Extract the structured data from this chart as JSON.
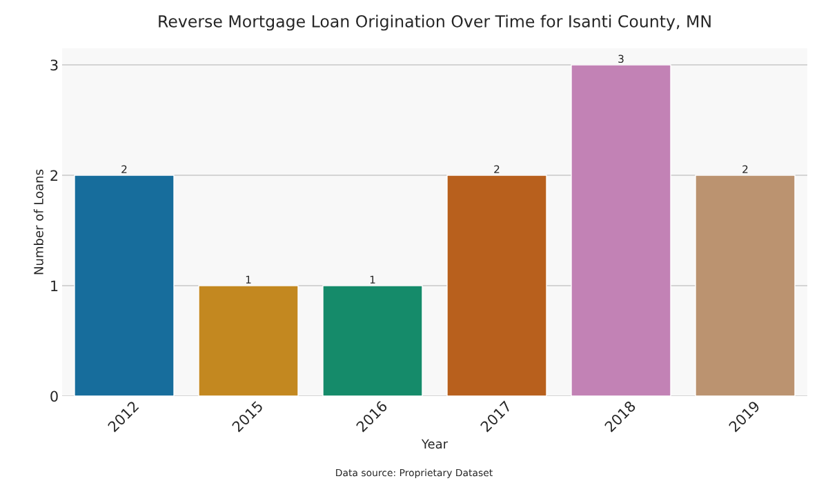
{
  "chart_data": {
    "type": "bar",
    "title": "Reverse Mortgage Loan Origination Over Time for Isanti County, MN",
    "xlabel": "Year",
    "ylabel": "Number of Loans",
    "categories": [
      "2012",
      "2015",
      "2016",
      "2017",
      "2018",
      "2019"
    ],
    "values": [
      2,
      1,
      1,
      2,
      3,
      2
    ],
    "colors": [
      "#176d9c",
      "#c38820",
      "#158b6a",
      "#b8601d",
      "#c282b5",
      "#bb9370"
    ],
    "ylim": [
      0,
      3.15
    ],
    "yticks": [
      0,
      1,
      2,
      3
    ],
    "grid": "y",
    "data_labels": true,
    "annotations": [
      "Data source: Proprietary Dataset"
    ]
  }
}
